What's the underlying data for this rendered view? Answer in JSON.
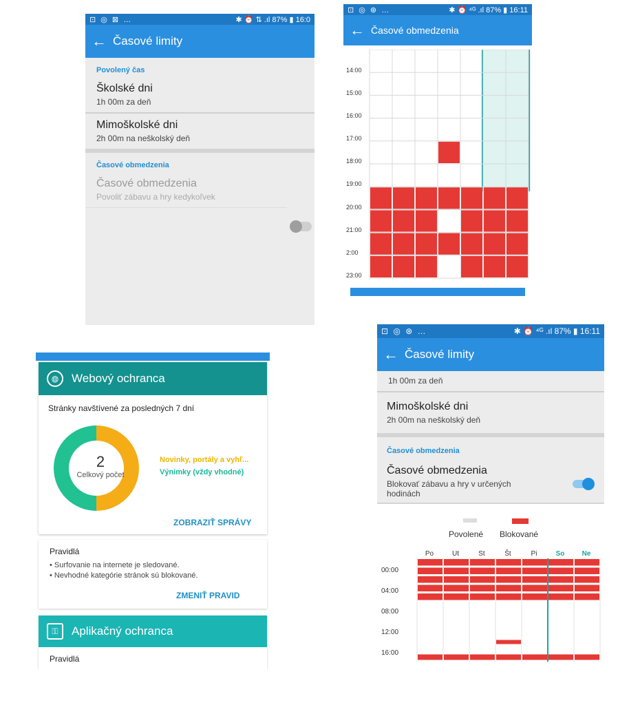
{
  "panel1": {
    "status": {
      "left": "⊡ ◎ ⊠ …",
      "right": "✱ ⏰ ⇅ .ıl 87% ▮ 16:0"
    },
    "title": "Časové limity",
    "allowed_header": "Povolený čas",
    "school_days": {
      "title": "Školské dni",
      "subtitle": "1h 00m za deň"
    },
    "non_school_days": {
      "title": "Mimoškolské dni",
      "subtitle": "2h 00m na neškolský deň"
    },
    "restrictions_header": "Časové obmedzenia",
    "restriction": {
      "title": "Časové obmedzenia",
      "subtitle": "Povoliť zábavu a hry kedykoľvek",
      "enabled": false
    }
  },
  "panel2": {
    "status": {
      "left": "⊡ ◎ ⊛ …",
      "right": "✱ ⏰ ⁴ᴳ .ıl 87% ▮ 16:11"
    },
    "title": "Časové obmedzenia",
    "hours": [
      "14:00",
      "15:00",
      "16:00",
      "17:00",
      "18:00",
      "19:00",
      "20:00",
      "21:00",
      "2:00",
      "23:00"
    ]
  },
  "panel3": {
    "web_title": "Webový ochranca",
    "web_subtitle": "Stránky navštívené za posledných 7 dní",
    "donut": {
      "total": "2",
      "total_label": "Celkový počet",
      "segment_news_fraction": 0.5,
      "segment_exceptions_fraction": 0.5
    },
    "legend_news": "Novinky, portály a vyhľ...",
    "legend_exceptions": "Výnimky (vždy vhodné)",
    "show_reports": "ZOBRAZIŤ SPRÁVY",
    "rules_title": "Pravidlá",
    "rules": [
      "• Surfovanie na internete je sledované.",
      "• Nevhodné kategórie stránok sú blokované."
    ],
    "change_rules": "ZMENIŤ PRAVID",
    "app_title": "Aplikačný ochranca",
    "app_rules_title": "Pravidlá"
  },
  "panel4": {
    "status": {
      "left": "⊡ ◎ ⊛ …",
      "right": "✱ ⏰ ⁴ᴳ .ıl 87% ▮ 16:11"
    },
    "title": "Časové limity",
    "school_days_subtitle": "1h 00m za deň",
    "non_school_days": {
      "title": "Mimoškolské dni",
      "subtitle": "2h 00m na neškolský deň"
    },
    "restrictions_header": "Časové obmedzenia",
    "restriction": {
      "title": "Časové obmedzenia",
      "subtitle_line1": "Blokovať zábavu a hry v určených",
      "subtitle_line2": "hodinách",
      "enabled": true
    },
    "legend_allowed": "Povolené",
    "legend_blocked": "Blokované",
    "days": [
      "Po",
      "Ut",
      "St",
      "Št",
      "Pi",
      "So",
      "Ne"
    ],
    "hours": [
      "00:00",
      "04:00",
      "08:00",
      "12:00",
      "16:00"
    ]
  },
  "colors": {
    "blocked": "#e53935",
    "weekend_highlight": "#dff3f1",
    "appbar": "#2b8fe0",
    "web_card": "#14928f",
    "app_card": "#1bb5b4"
  }
}
